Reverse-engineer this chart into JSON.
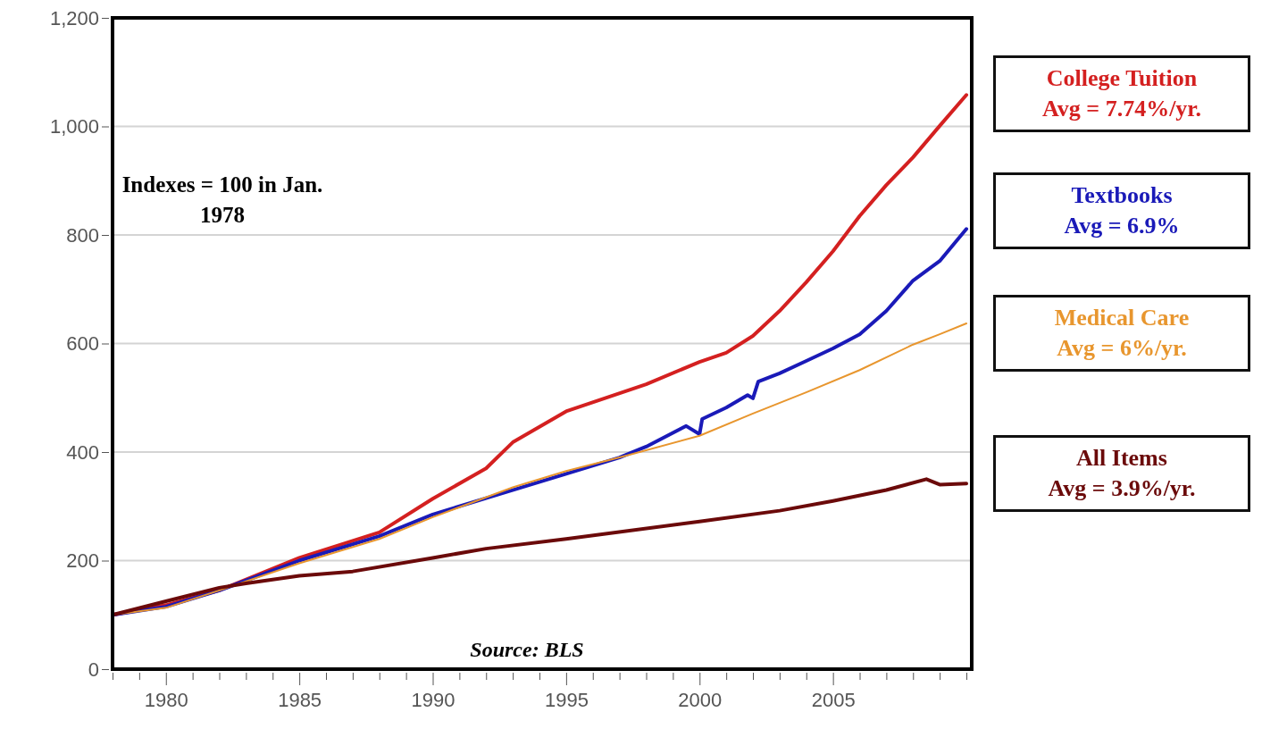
{
  "chart_data": {
    "type": "line",
    "annotations": [
      "Indexes = 100 in Jan. 1978",
      "Source: BLS",
      "Avg = 7.74%/yr.",
      "Avg = 6.9%",
      "Avg = 6%/yr.",
      "Avg = 3.9%/yr."
    ],
    "xlim": [
      1978,
      2010.2
    ],
    "ylim": [
      0,
      1200
    ],
    "yticks": [
      {
        "value": 0,
        "label": "0"
      },
      {
        "value": 200,
        "label": "200"
      },
      {
        "value": 400,
        "label": "400"
      },
      {
        "value": 600,
        "label": "600"
      },
      {
        "value": 800,
        "label": "800"
      },
      {
        "value": 1000,
        "label": "1,000"
      },
      {
        "value": 1200,
        "label": "1,200"
      }
    ],
    "xticks": [
      {
        "value": 1978,
        "label": null
      },
      {
        "value": 1979,
        "label": null
      },
      1980,
      {
        "value": 1981,
        "label": null
      },
      {
        "value": 1982,
        "label": null
      },
      {
        "value": 1983,
        "label": null
      },
      {
        "value": 1984,
        "label": null
      },
      1985,
      {
        "value": 1986,
        "label": null
      },
      {
        "value": 1987,
        "label": null
      },
      {
        "value": 1988,
        "label": null
      },
      {
        "value": 1989,
        "label": null
      },
      1990,
      {
        "value": 1991,
        "label": null
      },
      {
        "value": 1992,
        "label": null
      },
      {
        "value": 1993,
        "label": null
      },
      {
        "value": 1994,
        "label": null
      },
      1995,
      {
        "value": 1996,
        "label": null
      },
      {
        "value": 1997,
        "label": null
      },
      {
        "value": 1998,
        "label": null
      },
      {
        "value": 1999,
        "label": null
      },
      2000,
      {
        "value": 2001,
        "label": null
      },
      {
        "value": 2002,
        "label": null
      },
      {
        "value": 2003,
        "label": null
      },
      {
        "value": 2004,
        "label": null
      },
      2005,
      {
        "value": 2006,
        "label": null
      },
      {
        "value": 2007,
        "label": null
      },
      {
        "value": 2008,
        "label": null
      },
      {
        "value": 2009,
        "label": null
      },
      {
        "value": 2010,
        "label": null
      }
    ],
    "grid": "y",
    "legend": "right",
    "marker": "none",
    "line_style": "solid",
    "series": [
      {
        "name": "College Tuition",
        "color": "#d42020",
        "x": [
          1978,
          1980,
          1982,
          1985,
          1988,
          1990,
          1992,
          1993,
          1995,
          1998,
          2000,
          2001,
          2002,
          2003,
          2004,
          2005,
          2006,
          2007,
          2008,
          2009,
          2010
        ],
        "values": [
          100,
          118,
          145,
          205,
          252,
          314,
          370,
          418,
          475,
          525,
          566,
          583,
          614,
          660,
          713,
          770,
          835,
          892,
          943,
          1001,
          1058
        ]
      },
      {
        "name": "Textbooks",
        "color": "#1a1ab8",
        "x": [
          1978,
          1980,
          1982,
          1985,
          1988,
          1990,
          1992,
          1995,
          1997,
          1998,
          1999.5,
          2000,
          2000.1,
          2001,
          2001.8,
          2002,
          2002.2,
          2003,
          2004,
          2005,
          2006,
          2007,
          2008,
          2009,
          2010
        ],
        "values": [
          100,
          115,
          145,
          200,
          245,
          285,
          315,
          360,
          390,
          410,
          448,
          433,
          461,
          482,
          505,
          499,
          530,
          545,
          568,
          591,
          617,
          660,
          716,
          752,
          811
        ]
      },
      {
        "name": "Medical Care",
        "color": "#e8962e",
        "x": [
          1978,
          1980,
          1982,
          1985,
          1988,
          1990,
          1993,
          1995,
          1997,
          2000,
          2002,
          2004,
          2006,
          2008,
          2009,
          2010
        ],
        "values": [
          100,
          113,
          145,
          195,
          240,
          280,
          335,
          365,
          390,
          430,
          471,
          510,
          551,
          598,
          617,
          637
        ]
      },
      {
        "name": "All Items",
        "color": "#6b0a0a",
        "x": [
          1978,
          1980,
          1982,
          1983,
          1985,
          1987,
          1990,
          1992,
          1995,
          2000,
          2003,
          2005,
          2007,
          2008.5,
          2009,
          2010
        ],
        "values": [
          100,
          125,
          150,
          158,
          172,
          180,
          205,
          222,
          240,
          272,
          292,
          310,
          330,
          350,
          340,
          342
        ]
      }
    ]
  }
}
